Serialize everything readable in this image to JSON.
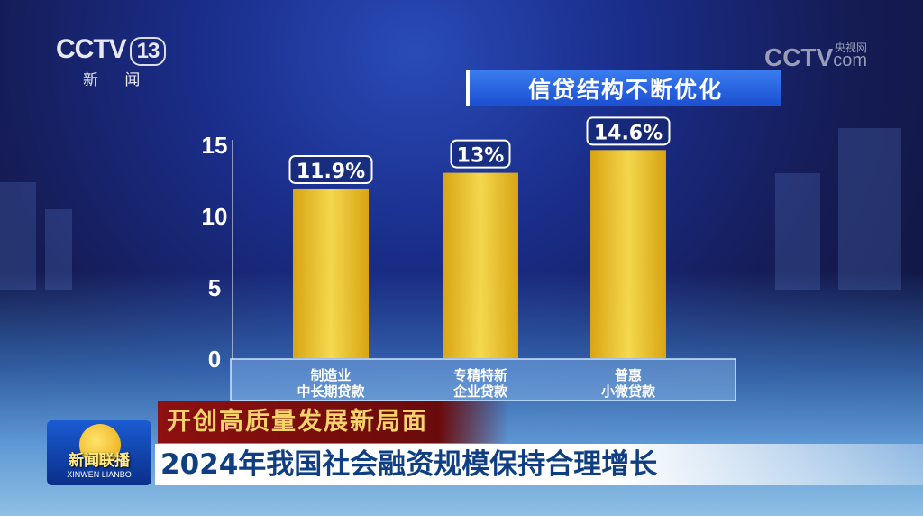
{
  "channel": {
    "logo": "CCTV",
    "number": "13",
    "name": "新 闻"
  },
  "watermark": {
    "logo": "CCTV",
    "sub": "央视网",
    "com": "com"
  },
  "program": {
    "name": "新闻联播",
    "pinyin": "XINWEN LIANBO"
  },
  "headline": {
    "tag": "开创高质量发展新局面",
    "title": "2024年我国社会融资规模保持合理增长"
  },
  "chart_data": {
    "type": "bar",
    "title": "信贷结构不断优化",
    "categories": [
      [
        "制造业",
        "中长期贷款"
      ],
      [
        "专精特新",
        "企业贷款"
      ],
      [
        "普惠",
        "小微贷款"
      ]
    ],
    "values": [
      11.9,
      13,
      14.6
    ],
    "data_labels": [
      "11.9%",
      "13%",
      "14.6%"
    ],
    "yticks": [
      0,
      5,
      10,
      15
    ],
    "ylim": [
      0,
      15
    ],
    "bar_color": "#f2c21c",
    "grid": false
  }
}
